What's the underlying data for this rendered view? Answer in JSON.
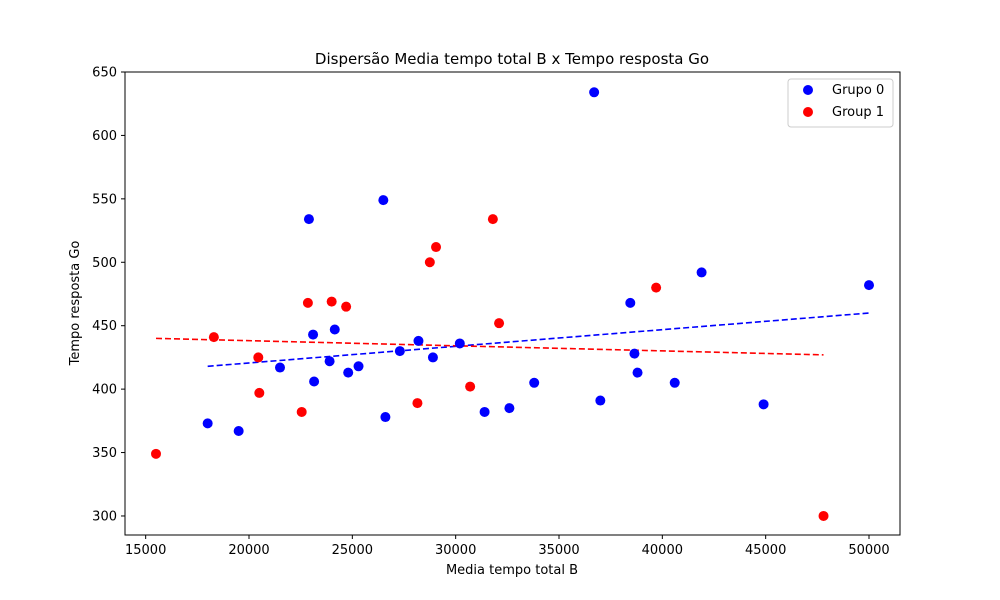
{
  "chart_data": {
    "type": "scatter",
    "title": "Dispersão Media tempo total B x Tempo resposta Go",
    "xlabel": "Media tempo total B",
    "ylabel": "Tempo resposta Go",
    "xlim": [
      14000,
      51500
    ],
    "ylim": [
      285,
      650
    ],
    "xticks": [
      15000,
      20000,
      25000,
      30000,
      35000,
      40000,
      45000,
      50000
    ],
    "yticks": [
      300,
      350,
      400,
      450,
      500,
      550,
      600,
      650
    ],
    "grid": false,
    "legend_position": "top-right",
    "series": [
      {
        "name": "Grupo 0",
        "color": "#0000ff",
        "points": [
          [
            18000,
            373
          ],
          [
            19500,
            367
          ],
          [
            21500,
            417
          ],
          [
            22900,
            534
          ],
          [
            23100,
            443
          ],
          [
            23150,
            406
          ],
          [
            23900,
            422
          ],
          [
            24150,
            447
          ],
          [
            24800,
            413
          ],
          [
            25300,
            418
          ],
          [
            26500,
            549
          ],
          [
            26600,
            378
          ],
          [
            27300,
            430
          ],
          [
            28200,
            438
          ],
          [
            28900,
            425
          ],
          [
            30200,
            436
          ],
          [
            31400,
            382
          ],
          [
            32600,
            385
          ],
          [
            33800,
            405
          ],
          [
            36700,
            634
          ],
          [
            37000,
            391
          ],
          [
            38450,
            468
          ],
          [
            38650,
            428
          ],
          [
            38800,
            413
          ],
          [
            40600,
            405
          ],
          [
            41900,
            492
          ],
          [
            44900,
            388
          ],
          [
            50000,
            482
          ]
        ],
        "trend": {
          "x": [
            18000,
            50000
          ],
          "y": [
            418,
            460
          ]
        }
      },
      {
        "name": "Group 1",
        "color": "#ff0000",
        "points": [
          [
            15500,
            349
          ],
          [
            18300,
            441
          ],
          [
            20450,
            425
          ],
          [
            20500,
            397
          ],
          [
            22550,
            382
          ],
          [
            22850,
            468
          ],
          [
            24000,
            469
          ],
          [
            24700,
            465
          ],
          [
            28150,
            389
          ],
          [
            28750,
            500
          ],
          [
            29050,
            512
          ],
          [
            30700,
            402
          ],
          [
            31800,
            534
          ],
          [
            32100,
            452
          ],
          [
            39700,
            480
          ],
          [
            47800,
            300
          ]
        ],
        "trend": {
          "x": [
            15500,
            47800
          ],
          "y": [
            440,
            427
          ]
        }
      }
    ]
  }
}
